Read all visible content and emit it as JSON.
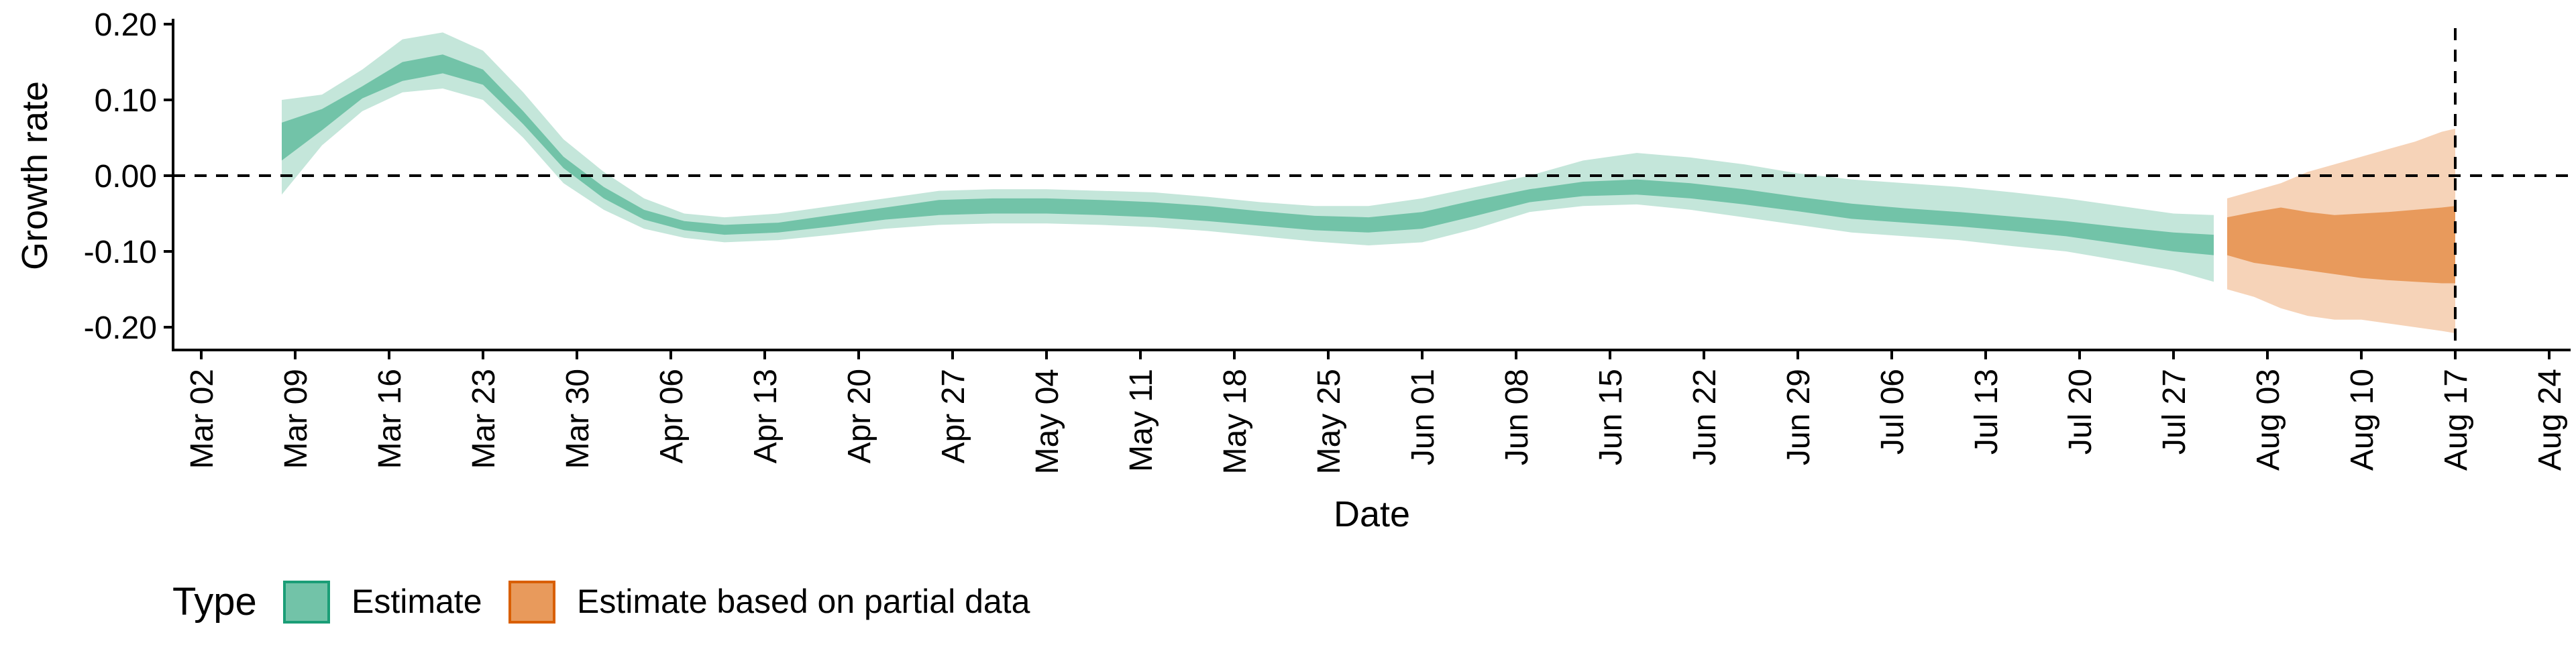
{
  "chart_data": {
    "type": "area",
    "xlabel": "Date",
    "ylabel": "Growth rate",
    "x_ticks": [
      "Mar 02",
      "Mar 09",
      "Mar 16",
      "Mar 23",
      "Mar 30",
      "Apr 06",
      "Apr 13",
      "Apr 20",
      "Apr 27",
      "May 04",
      "May 11",
      "May 18",
      "May 25",
      "Jun 01",
      "Jun 08",
      "Jun 15",
      "Jun 22",
      "Jun 29",
      "Jul 06",
      "Jul 13",
      "Jul 20",
      "Jul 27",
      "Aug 03",
      "Aug 10",
      "Aug 17",
      "Aug 24"
    ],
    "y_ticks": [
      "0.20",
      "0.10",
      "0.00",
      "-0.10",
      "-0.20"
    ],
    "ylim": [
      -0.232,
      0.2
    ],
    "xlim_days": [
      "2020-02-29",
      "2020-08-24"
    ],
    "year": 2020,
    "grid": false,
    "reference_lines": {
      "horizontal_y": 0.0,
      "vertical_date": "2020-08-17"
    },
    "legend": {
      "title": "Type",
      "position": "bottom-left",
      "entries": [
        {
          "label": "Estimate",
          "color": "#72c3a8",
          "border": "#1b9e77"
        },
        {
          "label": "Estimate based on partial data",
          "color": "#e89a5c",
          "border": "#d95f02"
        }
      ]
    },
    "colors": {
      "estimate_outer": "#c4e6da",
      "estimate_inner": "#72c3a8",
      "partial_outer": "#f6d3b8",
      "partial_inner": "#e89a5c"
    },
    "series": [
      {
        "name": "Estimate",
        "interval": "90%",
        "x": [
          "2020-03-08",
          "2020-03-11",
          "2020-03-14",
          "2020-03-17",
          "2020-03-20",
          "2020-03-23",
          "2020-03-26",
          "2020-03-29",
          "2020-04-01",
          "2020-04-04",
          "2020-04-07",
          "2020-04-10",
          "2020-04-14",
          "2020-04-18",
          "2020-04-22",
          "2020-04-26",
          "2020-04-30",
          "2020-05-04",
          "2020-05-08",
          "2020-05-12",
          "2020-05-16",
          "2020-05-20",
          "2020-05-24",
          "2020-05-28",
          "2020-06-01",
          "2020-06-05",
          "2020-06-09",
          "2020-06-13",
          "2020-06-17",
          "2020-06-21",
          "2020-06-25",
          "2020-06-29",
          "2020-07-03",
          "2020-07-07",
          "2020-07-11",
          "2020-07-15",
          "2020-07-19",
          "2020-07-23",
          "2020-07-27",
          "2020-07-30"
        ],
        "upper": [
          0.1,
          0.107,
          0.14,
          0.18,
          0.189,
          0.165,
          0.11,
          0.048,
          0.005,
          -0.03,
          -0.05,
          -0.055,
          -0.05,
          -0.04,
          -0.03,
          -0.02,
          -0.018,
          -0.018,
          -0.02,
          -0.022,
          -0.028,
          -0.035,
          -0.04,
          -0.04,
          -0.03,
          -0.015,
          0.0,
          0.02,
          0.03,
          0.024,
          0.015,
          0.003,
          -0.005,
          -0.01,
          -0.015,
          -0.022,
          -0.03,
          -0.04,
          -0.05,
          -0.052
        ],
        "lower": [
          -0.025,
          0.04,
          0.085,
          0.11,
          0.115,
          0.1,
          0.05,
          -0.01,
          -0.045,
          -0.07,
          -0.082,
          -0.088,
          -0.085,
          -0.078,
          -0.07,
          -0.065,
          -0.063,
          -0.063,
          -0.065,
          -0.068,
          -0.073,
          -0.08,
          -0.087,
          -0.092,
          -0.088,
          -0.07,
          -0.048,
          -0.04,
          -0.038,
          -0.045,
          -0.055,
          -0.065,
          -0.075,
          -0.08,
          -0.085,
          -0.093,
          -0.1,
          -0.112,
          -0.125,
          -0.14
        ]
      },
      {
        "name": "Estimate",
        "interval": "50%",
        "x": [
          "2020-03-08",
          "2020-03-11",
          "2020-03-14",
          "2020-03-17",
          "2020-03-20",
          "2020-03-23",
          "2020-03-26",
          "2020-03-29",
          "2020-04-01",
          "2020-04-04",
          "2020-04-07",
          "2020-04-10",
          "2020-04-14",
          "2020-04-18",
          "2020-04-22",
          "2020-04-26",
          "2020-04-30",
          "2020-05-04",
          "2020-05-08",
          "2020-05-12",
          "2020-05-16",
          "2020-05-20",
          "2020-05-24",
          "2020-05-28",
          "2020-06-01",
          "2020-06-05",
          "2020-06-09",
          "2020-06-13",
          "2020-06-17",
          "2020-06-21",
          "2020-06-25",
          "2020-06-29",
          "2020-07-03",
          "2020-07-07",
          "2020-07-11",
          "2020-07-15",
          "2020-07-19",
          "2020-07-23",
          "2020-07-27",
          "2020-07-30"
        ],
        "upper": [
          0.07,
          0.088,
          0.118,
          0.15,
          0.16,
          0.14,
          0.085,
          0.025,
          -0.015,
          -0.045,
          -0.06,
          -0.065,
          -0.062,
          -0.052,
          -0.042,
          -0.032,
          -0.03,
          -0.03,
          -0.032,
          -0.035,
          -0.04,
          -0.047,
          -0.053,
          -0.055,
          -0.048,
          -0.032,
          -0.018,
          -0.008,
          -0.005,
          -0.01,
          -0.018,
          -0.028,
          -0.037,
          -0.043,
          -0.048,
          -0.054,
          -0.06,
          -0.068,
          -0.075,
          -0.078
        ],
        "lower": [
          0.02,
          0.06,
          0.102,
          0.125,
          0.135,
          0.12,
          0.068,
          0.01,
          -0.03,
          -0.058,
          -0.072,
          -0.078,
          -0.075,
          -0.067,
          -0.058,
          -0.052,
          -0.05,
          -0.05,
          -0.052,
          -0.055,
          -0.06,
          -0.066,
          -0.072,
          -0.075,
          -0.07,
          -0.053,
          -0.035,
          -0.027,
          -0.025,
          -0.03,
          -0.038,
          -0.047,
          -0.057,
          -0.062,
          -0.067,
          -0.073,
          -0.08,
          -0.09,
          -0.1,
          -0.105
        ]
      },
      {
        "name": "Estimate based on partial data",
        "interval": "90%",
        "x": [
          "2020-07-31",
          "2020-08-02",
          "2020-08-04",
          "2020-08-06",
          "2020-08-08",
          "2020-08-10",
          "2020-08-12",
          "2020-08-14",
          "2020-08-16",
          "2020-08-17"
        ],
        "upper": [
          -0.03,
          -0.02,
          -0.01,
          0.005,
          0.015,
          0.025,
          0.035,
          0.045,
          0.058,
          0.062
        ],
        "lower": [
          -0.15,
          -0.16,
          -0.175,
          -0.185,
          -0.19,
          -0.19,
          -0.195,
          -0.2,
          -0.205,
          -0.208
        ]
      },
      {
        "name": "Estimate based on partial data",
        "interval": "50%",
        "x": [
          "2020-07-31",
          "2020-08-02",
          "2020-08-04",
          "2020-08-06",
          "2020-08-08",
          "2020-08-10",
          "2020-08-12",
          "2020-08-14",
          "2020-08-16",
          "2020-08-17"
        ],
        "upper": [
          -0.055,
          -0.048,
          -0.042,
          -0.048,
          -0.052,
          -0.05,
          -0.048,
          -0.045,
          -0.042,
          -0.04
        ],
        "lower": [
          -0.105,
          -0.115,
          -0.12,
          -0.125,
          -0.13,
          -0.135,
          -0.138,
          -0.14,
          -0.142,
          -0.142
        ]
      }
    ]
  }
}
